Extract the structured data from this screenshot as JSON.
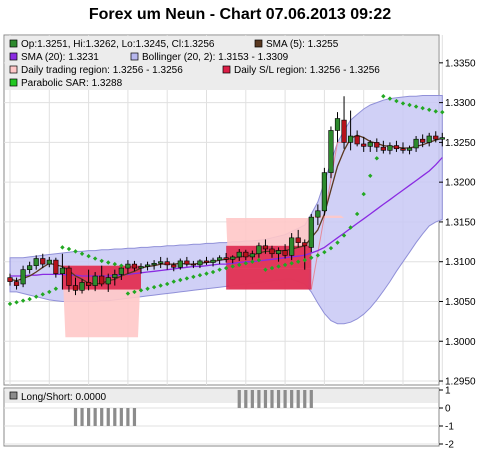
{
  "chart_data": {
    "type": "candlestick",
    "title": "Forex um Neun - Chart 07.06.2013 09:22",
    "ylim": [
      1.2945,
      1.3385
    ],
    "yticks": [
      "1.3350",
      "1.3300",
      "1.3250",
      "1.3200",
      "1.3150",
      "1.3100",
      "1.3050",
      "1.3000",
      "1.2950"
    ],
    "legend": {
      "ohlc": "Op:1.3251, Hi:1.3262, Lo:1.3245, Cl:1.3256",
      "sma5": "SMA (5): 1.3255",
      "sma20": "SMA (20): 1.3231",
      "bollinger": "Bollinger (20, 2): 1.3153 - 1.3309",
      "trading_region": "Daily trading region: 1.3256 - 1.3256",
      "sl_region": "Daily S/L region: 1.3256 - 1.3256",
      "psar": "Parabolic SAR: 1.3288"
    },
    "colors": {
      "up": "#2d8a2d",
      "down": "#b5121b",
      "sma5": "#5a3820",
      "sma20": "#8a2be2",
      "bollinger_fill": "#c8c8f5",
      "bollinger_line": "#9090d8",
      "trading_region": "#ffc8c8",
      "sl_region": "#dc1e46",
      "psar": "#22a822",
      "grid": "#e0e0e0"
    },
    "candles": [
      [
        1.308,
        1.3085,
        1.307,
        1.3075
      ],
      [
        1.3075,
        1.308,
        1.3065,
        1.307
      ],
      [
        1.3072,
        1.3095,
        1.3068,
        1.309
      ],
      [
        1.309,
        1.31,
        1.3085,
        1.3095
      ],
      [
        1.3095,
        1.3108,
        1.309,
        1.3104
      ],
      [
        1.3104,
        1.311,
        1.3092,
        1.3097
      ],
      [
        1.3097,
        1.3106,
        1.3093,
        1.3102
      ],
      [
        1.3102,
        1.3105,
        1.308,
        1.3085
      ],
      [
        1.3085,
        1.311,
        1.3065,
        1.3092
      ],
      [
        1.3092,
        1.3095,
        1.3062,
        1.307
      ],
      [
        1.307,
        1.308,
        1.3058,
        1.3064
      ],
      [
        1.3064,
        1.3078,
        1.306,
        1.3074
      ],
      [
        1.3074,
        1.309,
        1.3064,
        1.307
      ],
      [
        1.307,
        1.3087,
        1.3063,
        1.3082
      ],
      [
        1.3082,
        1.3095,
        1.3069,
        1.3072
      ],
      [
        1.3072,
        1.3085,
        1.3062,
        1.308
      ],
      [
        1.308,
        1.309,
        1.307,
        1.3084
      ],
      [
        1.3084,
        1.3095,
        1.3077,
        1.3092
      ],
      [
        1.3092,
        1.3102,
        1.3085,
        1.3097
      ],
      [
        1.3097,
        1.3101,
        1.3088,
        1.3092
      ],
      [
        1.3092,
        1.3098,
        1.3085,
        1.3094
      ],
      [
        1.3094,
        1.31,
        1.3089,
        1.3096
      ],
      [
        1.3096,
        1.3102,
        1.309,
        1.3098
      ],
      [
        1.3098,
        1.3106,
        1.3092,
        1.31
      ],
      [
        1.31,
        1.3105,
        1.309,
        1.3096
      ],
      [
        1.3096,
        1.3099,
        1.3088,
        1.3093
      ],
      [
        1.3093,
        1.3104,
        1.309,
        1.3101
      ],
      [
        1.3101,
        1.3106,
        1.3094,
        1.3097
      ],
      [
        1.3097,
        1.3101,
        1.3092,
        1.3096
      ],
      [
        1.3096,
        1.3103,
        1.3092,
        1.3101
      ],
      [
        1.3101,
        1.3106,
        1.3096,
        1.3099
      ],
      [
        1.3099,
        1.3105,
        1.3094,
        1.3102
      ],
      [
        1.3102,
        1.3108,
        1.3097,
        1.3105
      ],
      [
        1.3105,
        1.3111,
        1.3099,
        1.3103
      ],
      [
        1.3103,
        1.3108,
        1.3098,
        1.3106
      ],
      [
        1.3106,
        1.3116,
        1.3101,
        1.3112
      ],
      [
        1.3112,
        1.3115,
        1.3102,
        1.3106
      ],
      [
        1.3106,
        1.3114,
        1.31,
        1.311
      ],
      [
        1.311,
        1.3124,
        1.3105,
        1.312
      ],
      [
        1.312,
        1.3128,
        1.311,
        1.3116
      ],
      [
        1.3116,
        1.312,
        1.3105,
        1.311
      ],
      [
        1.311,
        1.3118,
        1.31,
        1.3114
      ],
      [
        1.3114,
        1.3122,
        1.3104,
        1.3108
      ],
      [
        1.3108,
        1.3136,
        1.3102,
        1.313
      ],
      [
        1.313,
        1.314,
        1.3118,
        1.3124
      ],
      [
        1.3124,
        1.3128,
        1.309,
        1.312
      ],
      [
        1.3118,
        1.316,
        1.3112,
        1.3156
      ],
      [
        1.3156,
        1.3172,
        1.3146,
        1.3164
      ],
      [
        1.3164,
        1.3218,
        1.3158,
        1.3212
      ],
      [
        1.3212,
        1.327,
        1.3205,
        1.3265
      ],
      [
        1.3265,
        1.3288,
        1.325,
        1.328
      ],
      [
        1.3278,
        1.3308,
        1.3242,
        1.325
      ],
      [
        1.325,
        1.329,
        1.324,
        1.3258
      ],
      [
        1.3258,
        1.3265,
        1.3245,
        1.3248
      ],
      [
        1.3248,
        1.3257,
        1.3238,
        1.3245
      ],
      [
        1.3245,
        1.3253,
        1.3238,
        1.325
      ],
      [
        1.325,
        1.3255,
        1.3238,
        1.3244
      ],
      [
        1.3244,
        1.3252,
        1.3236,
        1.324
      ],
      [
        1.324,
        1.325,
        1.3235,
        1.3246
      ],
      [
        1.3246,
        1.3252,
        1.3238,
        1.3242
      ],
      [
        1.3242,
        1.325,
        1.3236,
        1.324
      ],
      [
        1.324,
        1.3246,
        1.3235,
        1.3243
      ],
      [
        1.3243,
        1.3258,
        1.3238,
        1.3254
      ],
      [
        1.3254,
        1.326,
        1.3244,
        1.325
      ],
      [
        1.325,
        1.3262,
        1.3245,
        1.3258
      ],
      [
        1.3258,
        1.3264,
        1.325,
        1.3254
      ],
      [
        1.3254,
        1.3262,
        1.3245,
        1.3256
      ]
    ],
    "sma5": [
      1.3078,
      1.3076,
      1.3079,
      1.3082,
      1.3087,
      1.3093,
      1.3098,
      1.3096,
      1.3094,
      1.3089,
      1.3082,
      1.3078,
      1.3073,
      1.3072,
      1.3073,
      1.3076,
      1.3078,
      1.3082,
      1.3085,
      1.3088,
      1.3092,
      1.3094,
      1.3095,
      1.3097,
      1.3097,
      1.3097,
      1.3098,
      1.3097,
      1.3097,
      1.3098,
      1.3099,
      1.31,
      1.3102,
      1.3103,
      1.3104,
      1.3106,
      1.3107,
      1.3108,
      1.3111,
      1.3113,
      1.3113,
      1.3114,
      1.3114,
      1.3116,
      1.3118,
      1.312,
      1.313,
      1.314,
      1.316,
      1.319,
      1.322,
      1.324,
      1.3255,
      1.3259,
      1.3256,
      1.3251,
      1.3249,
      1.3246,
      1.3245,
      1.3244,
      1.3243,
      1.3243,
      1.3245,
      1.3247,
      1.325,
      1.3253,
      1.3255
    ],
    "sma20": [
      1.3082,
      1.3082,
      1.3082,
      1.3083,
      1.3083,
      1.3084,
      1.3084,
      1.3084,
      1.3084,
      1.3083,
      1.3083,
      1.3082,
      1.3082,
      1.3082,
      1.3082,
      1.3082,
      1.3083,
      1.3083,
      1.3084,
      1.3085,
      1.3086,
      1.3087,
      1.3088,
      1.3089,
      1.309,
      1.3091,
      1.3092,
      1.3093,
      1.3094,
      1.3094,
      1.3095,
      1.3096,
      1.3097,
      1.3097,
      1.3098,
      1.3099,
      1.31,
      1.31,
      1.3101,
      1.3102,
      1.3103,
      1.3104,
      1.3105,
      1.3106,
      1.3107,
      1.3108,
      1.3111,
      1.3114,
      1.3118,
      1.3124,
      1.313,
      1.3136,
      1.3142,
      1.3148,
      1.3154,
      1.316,
      1.3166,
      1.3172,
      1.3178,
      1.3184,
      1.319,
      1.3196,
      1.3202,
      1.3208,
      1.3214,
      1.3222,
      1.3231
    ],
    "boll_upper": [
      1.3105,
      1.3105,
      1.3105,
      1.3106,
      1.3107,
      1.3108,
      1.3109,
      1.311,
      1.3111,
      1.3112,
      1.3113,
      1.3113,
      1.3114,
      1.3114,
      1.3115,
      1.3115,
      1.3116,
      1.3116,
      1.3117,
      1.3117,
      1.3118,
      1.3118,
      1.3119,
      1.3119,
      1.312,
      1.312,
      1.3121,
      1.3121,
      1.3122,
      1.3122,
      1.3123,
      1.3123,
      1.3124,
      1.3124,
      1.3125,
      1.3125,
      1.3126,
      1.3126,
      1.3127,
      1.3128,
      1.313,
      1.3132,
      1.3134,
      1.3138,
      1.3142,
      1.3146,
      1.316,
      1.3175,
      1.32,
      1.3225,
      1.325,
      1.3265,
      1.3278,
      1.3285,
      1.3292,
      1.3297,
      1.33,
      1.3303,
      1.3305,
      1.3306,
      1.3307,
      1.3308,
      1.3308,
      1.3309,
      1.3309,
      1.3309,
      1.3309
    ],
    "boll_lower": [
      1.3062,
      1.3062,
      1.306,
      1.3058,
      1.3056,
      1.3054,
      1.3052,
      1.3051,
      1.305,
      1.305,
      1.305,
      1.305,
      1.305,
      1.305,
      1.3051,
      1.3051,
      1.3052,
      1.3053,
      1.3054,
      1.3055,
      1.3056,
      1.3057,
      1.3058,
      1.3059,
      1.306,
      1.3061,
      1.3062,
      1.3063,
      1.3064,
      1.3065,
      1.3066,
      1.3067,
      1.3068,
      1.3069,
      1.307,
      1.3071,
      1.3072,
      1.3073,
      1.3074,
      1.3075,
      1.3076,
      1.3077,
      1.3078,
      1.3078,
      1.3075,
      1.3072,
      1.3062,
      1.3048,
      1.3035,
      1.3026,
      1.3022,
      1.3022,
      1.3024,
      1.3028,
      1.3034,
      1.3042,
      1.3052,
      1.3063,
      1.3075,
      1.3088,
      1.31,
      1.3112,
      1.3124,
      1.3135,
      1.3145,
      1.315,
      1.3153
    ],
    "psar": [
      1.3047,
      1.3049,
      1.3051,
      1.3053,
      1.3056,
      1.3059,
      1.3062,
      1.3066,
      1.3118,
      1.3116,
      1.3113,
      1.311,
      1.3107,
      1.3104,
      1.3101,
      1.3099,
      1.3097,
      1.3095,
      1.306,
      1.3062,
      1.3064,
      1.3066,
      1.3068,
      1.307,
      1.3072,
      1.3075,
      1.3077,
      1.3079,
      1.3081,
      1.3083,
      1.3085,
      1.3087,
      1.309,
      1.3092,
      1.3094,
      1.3096,
      1.3098,
      1.31,
      1.3102,
      1.309,
      1.3092,
      1.3094,
      1.3096,
      1.3098,
      1.31,
      1.3102,
      1.3105,
      1.3108,
      1.3112,
      1.3117,
      1.3124,
      1.3133,
      1.3143,
      1.316,
      1.3185,
      1.3208,
      1.323,
      1.3308,
      1.3305,
      1.3302,
      1.3299,
      1.3297,
      1.3295,
      1.3293,
      1.3291,
      1.3289,
      1.3288
    ],
    "trading_regions": [
      {
        "from": 8,
        "to": 20,
        "top": 1.3095,
        "bottom": 1.3005
      },
      {
        "from": 33,
        "to": 46,
        "top": 1.3155,
        "bottom": 1.3065
      },
      {
        "from": 46,
        "to": 51,
        "top": 1.3155,
        "bottom": 1.3158
      }
    ],
    "sl_regions": [
      {
        "from": 8,
        "to": 20,
        "top": 1.3095,
        "bottom": 1.3065
      },
      {
        "from": 33,
        "to": 46,
        "top": 1.3092,
        "bottom": 1.3065
      },
      {
        "from": 33,
        "to": 46,
        "top": 1.312,
        "bottom": 1.3092
      }
    ],
    "subchart": {
      "label": "Long/Short: 0.0000",
      "ylim": [
        -2,
        1
      ],
      "yticks": [
        "1",
        "0",
        "-1",
        "-2"
      ],
      "short_bars": [
        10,
        11,
        12,
        13,
        14,
        15,
        16,
        17,
        18,
        19
      ],
      "long_bars": [
        35,
        36,
        37,
        38,
        39,
        40,
        41,
        42,
        43,
        44,
        45,
        46
      ]
    }
  }
}
